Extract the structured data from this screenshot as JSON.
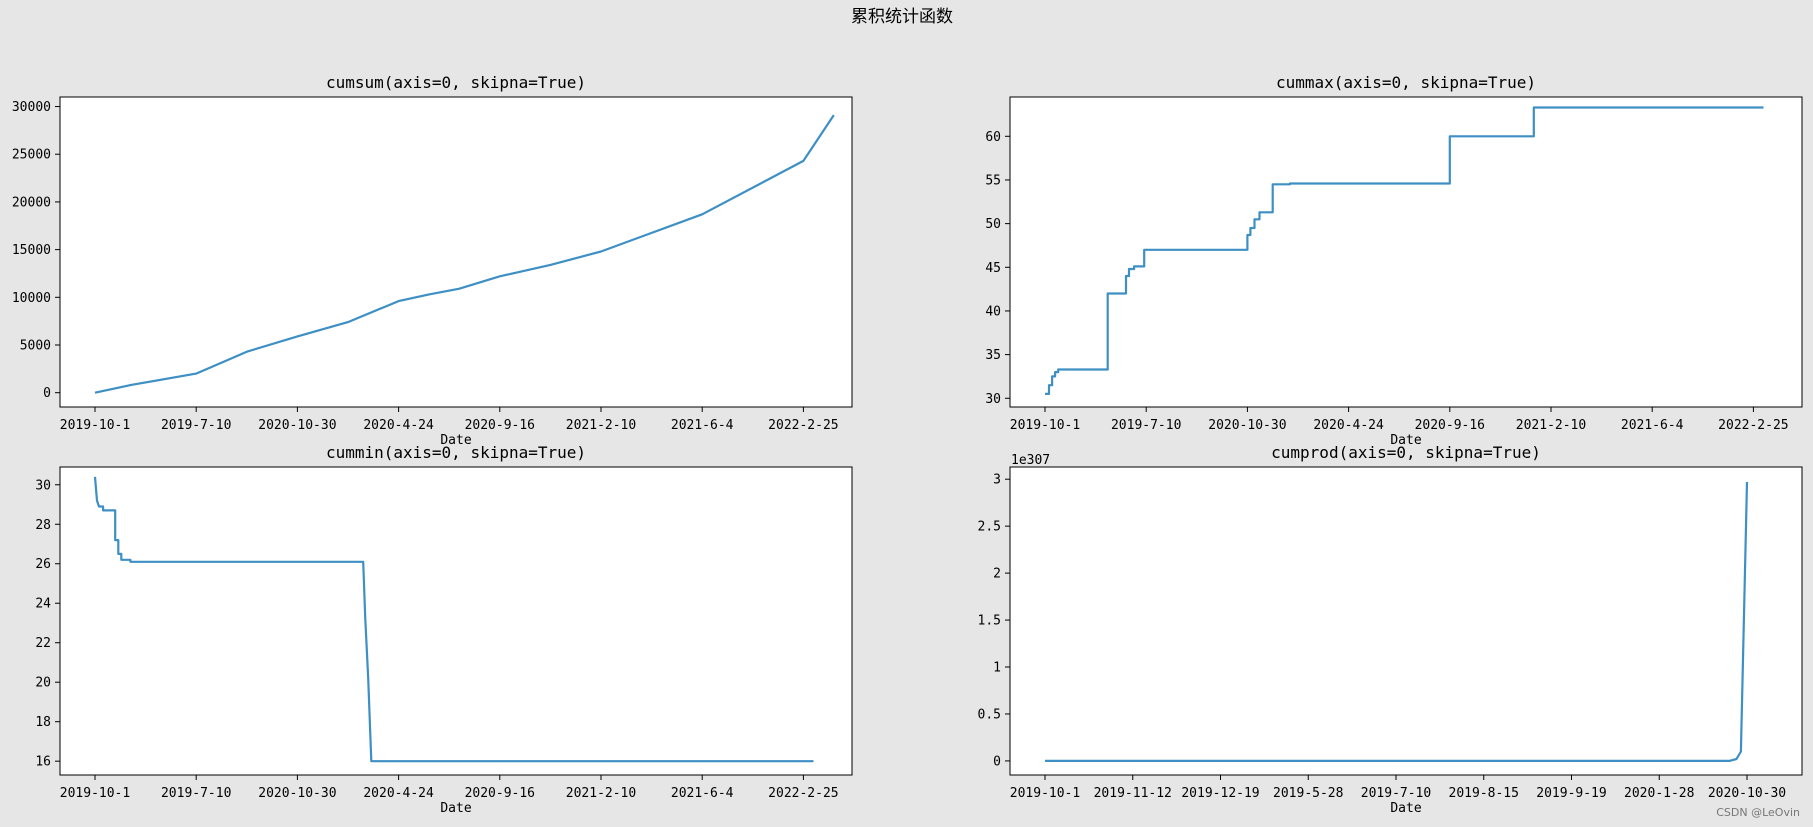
{
  "figure": {
    "suptitle": "累积统计函数",
    "watermark": "CSDN @LeOvin",
    "background": "#e6e6e6",
    "line_color": "#3d8fc4"
  },
  "chart_data": [
    {
      "type": "line",
      "title": "cumsum(axis=0, skipna=True)",
      "xlabel": "Date",
      "ylabel": "",
      "xticks": [
        "2019-10-1",
        "2019-7-10",
        "2020-10-30",
        "2020-4-24",
        "2020-9-16",
        "2021-2-10",
        "2021-6-4",
        "2022-2-25"
      ],
      "yticks": [
        0,
        5000,
        10000,
        15000,
        20000,
        25000,
        30000
      ],
      "ylim": [
        -1500,
        31000
      ],
      "series": [
        {
          "x": [
            0,
            0.35,
            1,
            1.5,
            2,
            2.5,
            3,
            3.3,
            3.6,
            4,
            4.5,
            5,
            6,
            7,
            7.3
          ],
          "values": [
            0,
            800,
            2000,
            4300,
            5900,
            7400,
            9600,
            10300,
            10900,
            12200,
            13400,
            14800,
            18700,
            24300,
            29100
          ]
        }
      ]
    },
    {
      "type": "line",
      "title": "cummax(axis=0, skipna=True)",
      "xlabel": "Date",
      "ylabel": "",
      "xticks": [
        "2019-10-1",
        "2019-7-10",
        "2020-10-30",
        "2020-4-24",
        "2020-9-16",
        "2021-2-10",
        "2021-6-4",
        "2022-2-25"
      ],
      "yticks": [
        30,
        35,
        40,
        45,
        50,
        55,
        60
      ],
      "ylim": [
        29,
        64.5
      ],
      "series": [
        {
          "x": [
            0,
            0.04,
            0.04,
            0.07,
            0.07,
            0.1,
            0.1,
            0.13,
            0.13,
            0.62,
            0.62,
            0.8,
            0.8,
            0.83,
            0.83,
            0.88,
            0.88,
            0.98,
            0.98,
            2.0,
            2.0,
            2.03,
            2.03,
            2.07,
            2.07,
            2.12,
            2.12,
            2.25,
            2.25,
            2.42,
            2.42,
            4.0,
            4.0,
            4.83,
            4.83,
            7.1
          ],
          "values": [
            30.5,
            30.5,
            31.5,
            31.5,
            32.5,
            32.5,
            33,
            33,
            33.3,
            33.3,
            42,
            42,
            44,
            44,
            44.8,
            44.8,
            45.1,
            45.1,
            47,
            47,
            48.7,
            48.7,
            49.5,
            49.5,
            50.5,
            50.5,
            51.3,
            51.3,
            54.5,
            54.5,
            54.6,
            54.6,
            60,
            60,
            63.3,
            63.3
          ]
        }
      ]
    },
    {
      "type": "line",
      "title": "cummin(axis=0, skipna=True)",
      "xlabel": "Date",
      "ylabel": "",
      "xticks": [
        "2019-10-1",
        "2019-7-10",
        "2020-10-30",
        "2020-4-24",
        "2020-9-16",
        "2021-2-10",
        "2021-6-4",
        "2022-2-25"
      ],
      "yticks": [
        16,
        18,
        20,
        22,
        24,
        26,
        28,
        30
      ],
      "ylim": [
        15.3,
        30.9
      ],
      "series": [
        {
          "x": [
            0,
            0.02,
            0.04,
            0.06,
            0.08,
            0.08,
            0.2,
            0.2,
            0.23,
            0.23,
            0.26,
            0.26,
            0.35,
            0.35,
            2.65,
            2.67,
            2.7,
            2.73,
            2.78,
            7.1
          ],
          "values": [
            30.4,
            29.2,
            28.9,
            28.9,
            28.9,
            28.7,
            28.7,
            27.2,
            27.2,
            26.5,
            26.5,
            26.2,
            26.2,
            26.1,
            26.1,
            23.3,
            20.2,
            16.0,
            16.0,
            16.0
          ]
        }
      ]
    },
    {
      "type": "line",
      "title": "cumprod(axis=0, skipna=True)",
      "xlabel": "Date",
      "ylabel": "",
      "offset_text": "1e307",
      "xticks": [
        "2019-10-1",
        "2019-11-12",
        "2019-12-19",
        "2019-5-28",
        "2019-7-10",
        "2019-8-15",
        "2019-9-19",
        "2020-1-28",
        "2020-10-30"
      ],
      "yticks": [
        0.0,
        0.5,
        1.0,
        1.5,
        2.0,
        2.5,
        3.0
      ],
      "ylim": [
        -0.15,
        3.13
      ],
      "series": [
        {
          "x": [
            0,
            7.8,
            7.88,
            7.93,
            8.0
          ],
          "values": [
            0,
            0,
            0.02,
            0.1,
            2.97
          ]
        }
      ]
    }
  ]
}
